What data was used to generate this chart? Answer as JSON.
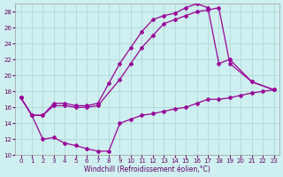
{
  "xlabel": "Windchill (Refroidissement éolien,°C)",
  "bg_color": "#cff0f0",
  "grid_color": "#b0d8d8",
  "line_color": "#990099",
  "xlim": [
    -0.5,
    23.5
  ],
  "ylim": [
    10,
    29
  ],
  "xticks": [
    0,
    1,
    2,
    3,
    4,
    5,
    6,
    7,
    8,
    9,
    10,
    11,
    12,
    13,
    14,
    15,
    16,
    17,
    18,
    19,
    20,
    21,
    22,
    23
  ],
  "yticks": [
    10,
    12,
    14,
    16,
    18,
    20,
    22,
    24,
    26,
    28
  ],
  "line1_x": [
    0,
    1,
    2,
    3,
    4,
    5,
    6,
    7,
    8,
    9,
    10,
    11,
    12,
    13,
    14,
    15,
    16,
    17,
    18,
    19,
    21,
    23
  ],
  "line1_y": [
    17.2,
    15.0,
    15.0,
    16.5,
    16.5,
    16.2,
    16.2,
    16.5,
    19.0,
    21.5,
    23.5,
    25.5,
    27.0,
    27.5,
    27.8,
    28.5,
    29.0,
    28.5,
    21.5,
    22.0,
    19.2,
    18.2
  ],
  "line2_x": [
    0,
    1,
    2,
    3,
    4,
    5,
    6,
    7,
    9,
    10,
    11,
    12,
    13,
    14,
    15,
    16,
    17,
    18,
    19,
    21,
    23
  ],
  "line2_y": [
    17.2,
    15.0,
    15.0,
    16.2,
    16.2,
    16.0,
    16.0,
    16.2,
    19.5,
    21.5,
    23.5,
    25.0,
    26.5,
    27.0,
    27.5,
    28.0,
    28.2,
    28.5,
    21.5,
    19.2,
    18.2
  ],
  "line3_x": [
    0,
    1,
    2,
    3,
    4,
    5,
    6,
    7,
    8,
    9,
    10,
    11,
    12,
    13,
    14,
    15,
    16,
    17,
    18,
    19,
    20,
    21,
    22,
    23
  ],
  "line3_y": [
    17.2,
    15.0,
    12.0,
    12.2,
    11.5,
    11.2,
    10.8,
    10.5,
    10.5,
    14.0,
    14.5,
    15.0,
    15.2,
    15.5,
    15.8,
    16.0,
    16.5,
    17.0,
    17.0,
    17.2,
    17.5,
    17.8,
    18.0,
    18.2
  ]
}
